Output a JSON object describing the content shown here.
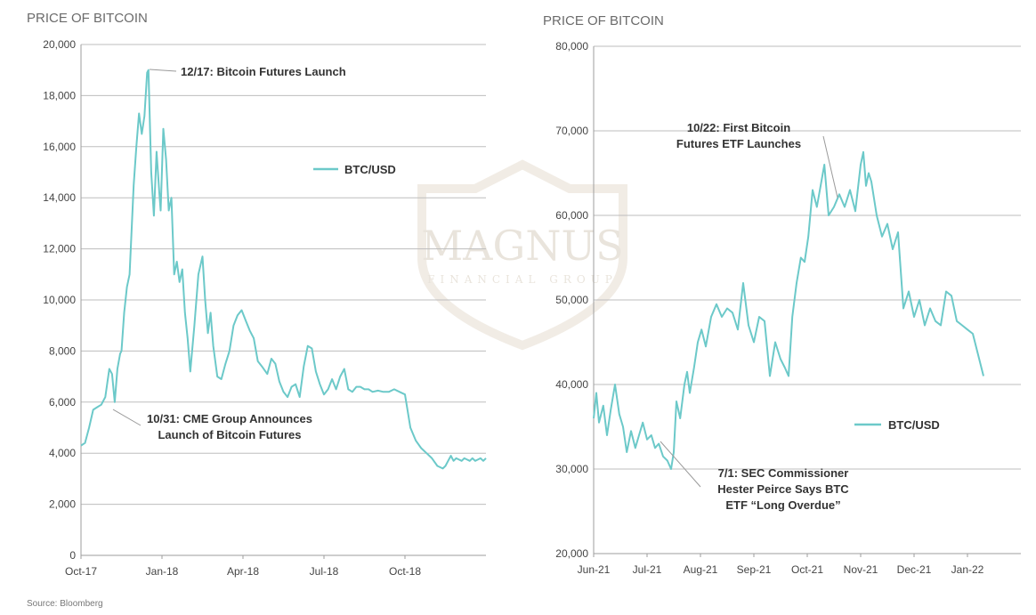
{
  "source": "Source: Bloomberg",
  "watermark": {
    "name": "MAGNUS",
    "sub": "FINANCIAL GROUP"
  },
  "colors": {
    "line": "#6cc9c9",
    "grid": "#bdbdbd",
    "axis": "#9e9e9e"
  },
  "chart_data": [
    {
      "type": "line",
      "title": "PRICE OF BITCOIN",
      "series_name": "BTC/USD",
      "legend": "BTC/USD",
      "legend_position": "upper-middle-right",
      "ylim": [
        0,
        20000
      ],
      "yticks": [
        0,
        2000,
        4000,
        6000,
        8000,
        10000,
        12000,
        14000,
        16000,
        18000,
        20000
      ],
      "ytick_labels": [
        "0",
        "2,000",
        "4,000",
        "6,000",
        "8,000",
        "10,000",
        "12,000",
        "14,000",
        "16,000",
        "18,000",
        "20,000"
      ],
      "xlim": [
        0,
        15
      ],
      "xticks": [
        0,
        3,
        6,
        9,
        12
      ],
      "xtick_labels": [
        "Oct-17",
        "Jan-18",
        "Apr-18",
        "Jul-18",
        "Oct-18"
      ],
      "x_unit": "months since Oct 2017",
      "x": [
        0,
        0.15,
        0.3,
        0.45,
        0.6,
        0.75,
        0.9,
        1.05,
        1.15,
        1.25,
        1.35,
        1.45,
        1.5,
        1.6,
        1.7,
        1.8,
        1.95,
        2.05,
        2.15,
        2.25,
        2.35,
        2.45,
        2.5,
        2.6,
        2.7,
        2.8,
        2.9,
        2.95,
        3.05,
        3.15,
        3.25,
        3.35,
        3.45,
        3.55,
        3.65,
        3.75,
        3.85,
        3.95,
        4.05,
        4.2,
        4.35,
        4.5,
        4.6,
        4.7,
        4.8,
        4.9,
        5.05,
        5.2,
        5.35,
        5.5,
        5.65,
        5.8,
        5.95,
        6.1,
        6.25,
        6.4,
        6.55,
        6.7,
        6.9,
        7.05,
        7.2,
        7.35,
        7.5,
        7.65,
        7.8,
        7.95,
        8.1,
        8.25,
        8.4,
        8.55,
        8.7,
        8.85,
        9.0,
        9.15,
        9.3,
        9.45,
        9.6,
        9.75,
        9.9,
        10.05,
        10.2,
        10.35,
        10.5,
        10.65,
        10.8,
        11.0,
        11.2,
        11.4,
        11.6,
        11.8,
        12.0,
        12.2,
        12.4,
        12.6,
        12.8,
        13.0,
        13.2,
        13.4,
        13.5,
        13.6,
        13.7,
        13.8,
        13.9,
        14.0,
        14.1,
        14.2,
        14.3,
        14.4,
        14.5,
        14.6,
        14.7,
        14.8,
        14.9,
        15.0
      ],
      "values": [
        4300,
        4400,
        5000,
        5700,
        5800,
        5900,
        6200,
        7300,
        7100,
        6000,
        7300,
        7900,
        8000,
        9500,
        10500,
        11000,
        14500,
        16000,
        17300,
        16500,
        17200,
        18900,
        19000,
        15000,
        13300,
        15800,
        14200,
        13500,
        16700,
        15500,
        13500,
        14000,
        11000,
        11500,
        10700,
        11200,
        9500,
        8500,
        7200,
        9000,
        11000,
        11700,
        10000,
        8700,
        9500,
        8200,
        7000,
        6900,
        7500,
        8000,
        9000,
        9400,
        9600,
        9200,
        8800,
        8500,
        7600,
        7400,
        7100,
        7700,
        7500,
        6800,
        6400,
        6200,
        6600,
        6700,
        6200,
        7400,
        8200,
        8100,
        7200,
        6700,
        6300,
        6500,
        6900,
        6500,
        7000,
        7300,
        6500,
        6400,
        6600,
        6600,
        6500,
        6500,
        6400,
        6450,
        6400,
        6400,
        6500,
        6400,
        6300,
        5000,
        4500,
        4200,
        4000,
        3800,
        3500,
        3400,
        3500,
        3700,
        3900,
        3700,
        3800,
        3750,
        3700,
        3800,
        3750,
        3700,
        3800,
        3700,
        3750,
        3800,
        3700,
        3800
      ],
      "annotations": [
        {
          "text_lines": [
            "12/17: Bitcoin Futures Launch"
          ],
          "x": 2.55,
          "y": 19000
        },
        {
          "text_lines": [
            "10/31: CME Group Announces",
            "Launch of Bitcoin Futures"
          ],
          "x": 1.05,
          "y": 6000
        }
      ]
    },
    {
      "type": "line",
      "title": "PRICE OF BITCOIN",
      "series_name": "BTC/USD",
      "legend": "BTC/USD",
      "legend_position": "lower-middle-right",
      "ylim": [
        20000,
        80000
      ],
      "yticks": [
        20000,
        30000,
        40000,
        50000,
        60000,
        70000,
        80000
      ],
      "ytick_labels": [
        "20,000",
        "30,000",
        "40,000",
        "50,000",
        "60,000",
        "70,000",
        "80,000"
      ],
      "xlim": [
        0,
        8
      ],
      "xticks": [
        0,
        1,
        2,
        3,
        4,
        5,
        6,
        7
      ],
      "xtick_labels": [
        "Jun-21",
        "Jul-21",
        "Aug-21",
        "Sep-21",
        "Oct-21",
        "Nov-21",
        "Dec-21",
        "Jan-22"
      ],
      "x_unit": "months since Jun 2021",
      "x": [
        0,
        0.05,
        0.1,
        0.18,
        0.25,
        0.32,
        0.4,
        0.48,
        0.55,
        0.62,
        0.7,
        0.78,
        0.85,
        0.92,
        1.0,
        1.08,
        1.15,
        1.22,
        1.3,
        1.38,
        1.45,
        1.5,
        1.55,
        1.62,
        1.7,
        1.75,
        1.8,
        1.88,
        1.95,
        2.02,
        2.1,
        2.2,
        2.3,
        2.4,
        2.5,
        2.6,
        2.7,
        2.8,
        2.9,
        3.0,
        3.1,
        3.2,
        3.3,
        3.4,
        3.5,
        3.58,
        3.65,
        3.72,
        3.8,
        3.88,
        3.95,
        4.02,
        4.1,
        4.18,
        4.25,
        4.32,
        4.4,
        4.5,
        4.6,
        4.7,
        4.8,
        4.9,
        5.0,
        5.05,
        5.1,
        5.15,
        5.2,
        5.3,
        5.4,
        5.5,
        5.6,
        5.7,
        5.8,
        5.9,
        6.0,
        6.1,
        6.2,
        6.3,
        6.4,
        6.5,
        6.6,
        6.7,
        6.8,
        6.9,
        7.0,
        7.1,
        7.2,
        7.3
      ],
      "values": [
        36000,
        39000,
        35500,
        37500,
        34000,
        37000,
        40000,
        36500,
        35000,
        32000,
        34500,
        32500,
        34000,
        35500,
        33500,
        34000,
        32500,
        33000,
        31500,
        31000,
        30000,
        32000,
        38000,
        36000,
        40000,
        41500,
        39000,
        42000,
        45000,
        46500,
        44500,
        48000,
        49500,
        48000,
        49000,
        48500,
        46500,
        52000,
        47000,
        45000,
        48000,
        47500,
        41000,
        45000,
        43000,
        42000,
        41000,
        48000,
        52000,
        55000,
        54500,
        57500,
        63000,
        61000,
        63500,
        66000,
        60000,
        61000,
        62500,
        61000,
        63000,
        60500,
        66000,
        67500,
        63500,
        65000,
        64000,
        60000,
        57500,
        59000,
        56000,
        58000,
        49000,
        51000,
        48000,
        50000,
        47000,
        49000,
        47500,
        47000,
        51000,
        50500,
        47500,
        47000,
        46500,
        46000,
        43500,
        41000
      ],
      "annotations": [
        {
          "text_lines": [
            "10/22: First Bitcoin",
            "Futures ETF Launches"
          ],
          "x": 4.7,
          "y": 66000
        },
        {
          "text_lines": [
            "7/1: SEC Commissioner",
            "Hester Peirce Says BTC",
            "ETF “Long Overdue”"
          ],
          "x": 1.05,
          "y": 34500
        }
      ]
    }
  ]
}
